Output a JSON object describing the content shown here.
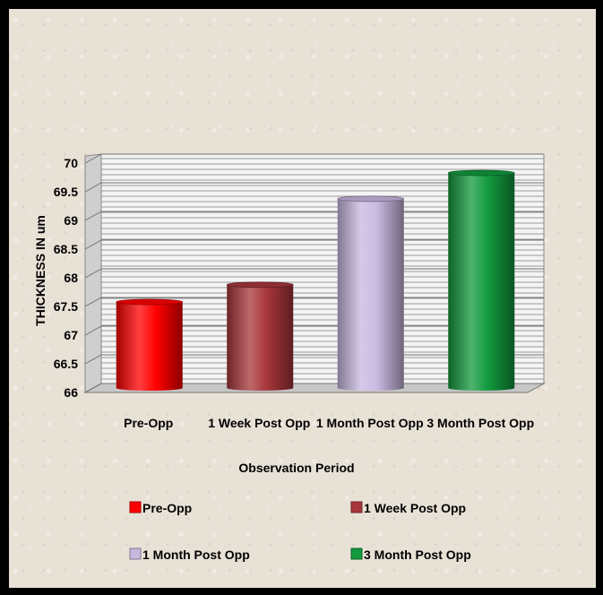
{
  "chart_data": {
    "type": "bar",
    "categories": [
      "Pre-Opp",
      "1 Week Post Opp",
      "1 Month Post Opp",
      "3 Month Post Opp"
    ],
    "values": [
      67.5,
      67.8,
      69.3,
      69.75
    ],
    "xlabel": "Observation Period",
    "ylabel": "THICKNESS IN um",
    "ylim": [
      66,
      70
    ],
    "yticks": [
      "66",
      "66.5",
      "67",
      "67.5",
      "68",
      "68.5",
      "69",
      "69.5",
      "70"
    ],
    "colors": [
      "#ff0000",
      "#a8363a",
      "#c8b8e0",
      "#129a3e"
    ],
    "grid": true,
    "legend": [
      {
        "label": "Pre-Opp",
        "color": "#ff0000"
      },
      {
        "label": "1 Week Post Opp",
        "color": "#a8363a"
      },
      {
        "label": "1 Month Post Opp",
        "color": "#c8b8e0"
      },
      {
        "label": "3 Month Post Opp",
        "color": "#129a3e"
      }
    ],
    "legend_position": "bottom"
  }
}
